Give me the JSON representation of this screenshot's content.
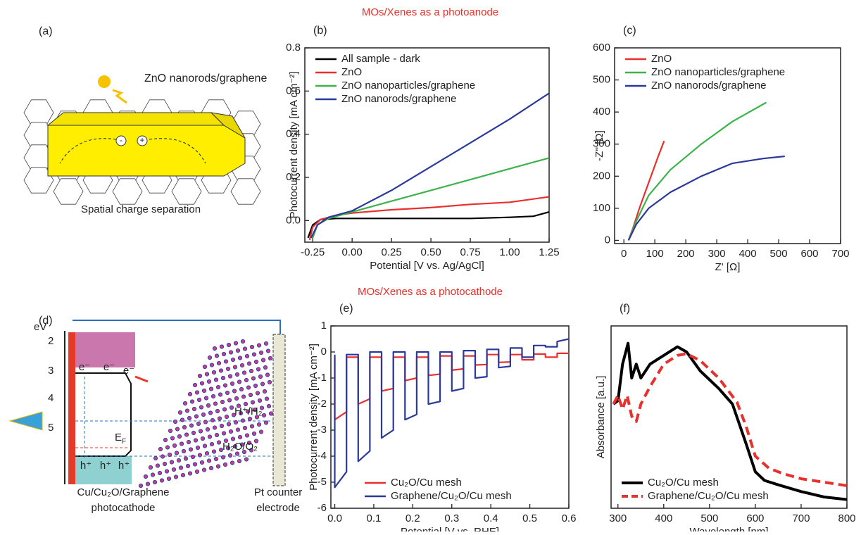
{
  "headings": {
    "photoanode": "MOs/Xenes as a photoanode",
    "photocathode": "MOs/Xenes as a photocathode"
  },
  "diagram_a": {
    "panel": "(a)",
    "title": "ZnO nanorods/graphene",
    "caption": "Spatial charge separation",
    "minus": "-",
    "plus": "+"
  },
  "diagram_d": {
    "panel": "(d)",
    "axis_unit": "eV",
    "levels": [
      "2",
      "3",
      "4",
      "5"
    ],
    "electrons": [
      "e⁻",
      "e⁻",
      "e⁻"
    ],
    "holes": [
      "h⁺",
      "h⁺",
      "h⁺"
    ],
    "fermi": {
      "main": "E",
      "sub": "F"
    },
    "couple_1": "H⁺/H₂",
    "couple_2": "H₂O/O₂",
    "cathode": [
      "Cu/Cu₂O/Graphene",
      "photocathode"
    ],
    "counter": [
      "Pt counter",
      "electrode"
    ]
  },
  "chart_data": [
    {
      "type": "line",
      "panel": "(b)",
      "xlabel": "Potential [V vs. Ag/AgCl]",
      "ylabel": "Photocurrent density [mA cm⁻²]",
      "xlim": [
        -0.3,
        1.25
      ],
      "ylim": [
        -0.1,
        0.8
      ],
      "xticks": [
        -0.25,
        {
          "value": 0,
          "label": "0.00"
        },
        0.25,
        {
          "value": 0.5,
          "label": "0.50"
        },
        0.75,
        {
          "value": 1,
          "label": "1.00"
        },
        1.25
      ],
      "yticks": [
        {
          "value": 0,
          "label": "0.0"
        },
        0.2,
        0.4,
        0.6,
        0.8
      ],
      "legend": "upper left",
      "series": [
        {
          "name": "All sample - dark",
          "color": "#000000",
          "x": [
            -0.28,
            -0.25,
            -0.2,
            -0.1,
            0,
            0.25,
            0.5,
            0.75,
            1.0,
            1.15,
            1.25
          ],
          "values": [
            -0.08,
            -0.02,
            0.005,
            0.01,
            0.01,
            0.01,
            0.01,
            0.01,
            0.015,
            0.02,
            0.04
          ]
        },
        {
          "name": "ZnO",
          "color": "#e8302e",
          "x": [
            -0.27,
            -0.25,
            -0.2,
            -0.1,
            0,
            0.25,
            0.5,
            0.75,
            1.0,
            1.25
          ],
          "values": [
            -0.09,
            -0.03,
            0.005,
            0.025,
            0.035,
            0.05,
            0.06,
            0.075,
            0.085,
            0.11
          ]
        },
        {
          "name": "ZnO nanoparticles/graphene",
          "color": "#3cb44b",
          "x": [
            -0.25,
            -0.22,
            -0.15,
            -0.1,
            0,
            0.25,
            0.5,
            0.75,
            1.0,
            1.25
          ],
          "values": [
            -0.08,
            -0.02,
            0.01,
            0.02,
            0.04,
            0.09,
            0.14,
            0.19,
            0.24,
            0.29
          ]
        },
        {
          "name": "ZnO nanorods/graphene",
          "color": "#2b3a9a",
          "x": [
            -0.26,
            -0.22,
            -0.15,
            -0.1,
            0,
            0.25,
            0.5,
            0.75,
            1.0,
            1.25
          ],
          "values": [
            -0.08,
            -0.02,
            0.015,
            0.025,
            0.045,
            0.14,
            0.25,
            0.36,
            0.47,
            0.59
          ]
        }
      ]
    },
    {
      "type": "line",
      "panel": "(c)",
      "xlabel": "Z' [Ω]",
      "ylabel": "-Z'' [Ω]",
      "xlim": [
        -30,
        700
      ],
      "ylim": [
        -10,
        600
      ],
      "xticks": [
        0,
        100,
        200,
        300,
        400,
        500,
        600,
        700
      ],
      "yticks": [
        0,
        100,
        200,
        300,
        400,
        500,
        600
      ],
      "legend": "upper left",
      "series": [
        {
          "name": "ZnO",
          "color": "#e8302e",
          "x": [
            15,
            30,
            50,
            80,
            110,
            130
          ],
          "values": [
            0,
            40,
            100,
            180,
            260,
            310
          ]
        },
        {
          "name": "ZnO nanoparticles/graphene",
          "color": "#3cb44b",
          "x": [
            15,
            40,
            80,
            150,
            250,
            350,
            460
          ],
          "values": [
            0,
            60,
            140,
            220,
            300,
            370,
            430
          ]
        },
        {
          "name": "ZnO nanorods/graphene",
          "color": "#2b3a9a",
          "x": [
            15,
            40,
            80,
            150,
            250,
            350,
            450,
            520
          ],
          "values": [
            0,
            50,
            100,
            150,
            200,
            240,
            255,
            262
          ]
        }
      ]
    },
    {
      "type": "line",
      "panel": "(e)",
      "xlabel": "Potential [V vs. RHE]",
      "ylabel": "Photocurrent density [mA cm⁻²]",
      "xlim": [
        -0.01,
        0.6
      ],
      "ylim": [
        -6,
        1
      ],
      "xticks": [
        {
          "value": 0,
          "label": "0.0"
        },
        0.1,
        0.2,
        0.3,
        0.4,
        0.5,
        0.6
      ],
      "yticks": [
        -6,
        -5,
        -4,
        -3,
        -2,
        -1,
        0,
        1
      ],
      "legend": "lower right",
      "x": [
        0,
        0,
        0.03,
        0.03,
        0.06,
        0.06,
        0.09,
        0.09,
        0.12,
        0.12,
        0.15,
        0.15,
        0.18,
        0.18,
        0.21,
        0.21,
        0.24,
        0.24,
        0.27,
        0.27,
        0.3,
        0.3,
        0.33,
        0.33,
        0.36,
        0.36,
        0.39,
        0.39,
        0.42,
        0.42,
        0.45,
        0.45,
        0.48,
        0.48,
        0.51,
        0.51,
        0.54,
        0.54,
        0.57,
        0.57,
        0.6
      ],
      "series": [
        {
          "name": "Cu₂O/Cu mesh",
          "color": "#e8302e",
          "values": [
            -0.2,
            -2.6,
            -2.3,
            -0.2,
            -0.2,
            -2.0,
            -1.8,
            -0.2,
            -0.2,
            -1.5,
            -1.4,
            -0.2,
            -0.2,
            -1.1,
            -1.0,
            -0.2,
            -0.2,
            -0.9,
            -0.85,
            -0.15,
            -0.15,
            -0.7,
            -0.65,
            -0.15,
            -0.15,
            -0.5,
            -0.48,
            -0.1,
            -0.1,
            -0.4,
            -0.38,
            -0.1,
            -0.1,
            -0.3,
            -0.3,
            -0.08,
            -0.08,
            -0.2,
            -0.2,
            -0.05,
            -0.05
          ]
        },
        {
          "name": "Graphene/Cu₂O/Cu mesh",
          "color": "#2b3a9a",
          "values": [
            -0.1,
            -5.2,
            -4.6,
            -0.1,
            -0.1,
            -4.2,
            -3.8,
            0,
            0,
            -3.3,
            -3.0,
            0,
            0,
            -2.6,
            -2.4,
            0,
            0,
            -2.0,
            -1.9,
            0,
            0,
            -1.5,
            -1.4,
            0.05,
            0.05,
            -1.0,
            -0.95,
            0.1,
            0.1,
            -0.6,
            -0.55,
            0.15,
            0.15,
            -0.2,
            -0.2,
            0.25,
            0.25,
            0.2,
            0.2,
            0.4,
            0.5
          ]
        }
      ]
    },
    {
      "type": "line",
      "panel": "(f)",
      "xlabel": "Wavelength [nm]",
      "ylabel": "Absorbance [a.u.]",
      "xlim": [
        285,
        800
      ],
      "ylim": [
        -0.05,
        1
      ],
      "xticks": [
        300,
        400,
        500,
        600,
        700,
        800
      ],
      "legend": "lower left",
      "series": [
        {
          "name": "Cu₂O/Cu mesh",
          "color": "#000000",
          "width": 4,
          "x": [
            290,
            300,
            310,
            322,
            330,
            340,
            350,
            370,
            400,
            430,
            450,
            480,
            520,
            550,
            580,
            600,
            620,
            650,
            700,
            750,
            800
          ],
          "values": [
            0.55,
            0.57,
            0.78,
            0.9,
            0.7,
            0.78,
            0.7,
            0.78,
            0.83,
            0.88,
            0.85,
            0.74,
            0.64,
            0.55,
            0.32,
            0.16,
            0.11,
            0.085,
            0.046,
            0.015,
            0.0
          ]
        },
        {
          "name": "Graphene/Cu₂O/Cu mesh",
          "color": "#e8302e",
          "width": 4,
          "dash": true,
          "x": [
            290,
            300,
            310,
            320,
            330,
            340,
            350,
            370,
            400,
            430,
            450,
            480,
            520,
            560,
            580,
            600,
            630,
            660,
            700,
            750,
            800
          ],
          "values": [
            0.55,
            0.6,
            0.52,
            0.6,
            0.48,
            0.45,
            0.55,
            0.65,
            0.78,
            0.83,
            0.84,
            0.8,
            0.7,
            0.56,
            0.42,
            0.25,
            0.18,
            0.15,
            0.12,
            0.1,
            0.08
          ]
        }
      ]
    }
  ]
}
